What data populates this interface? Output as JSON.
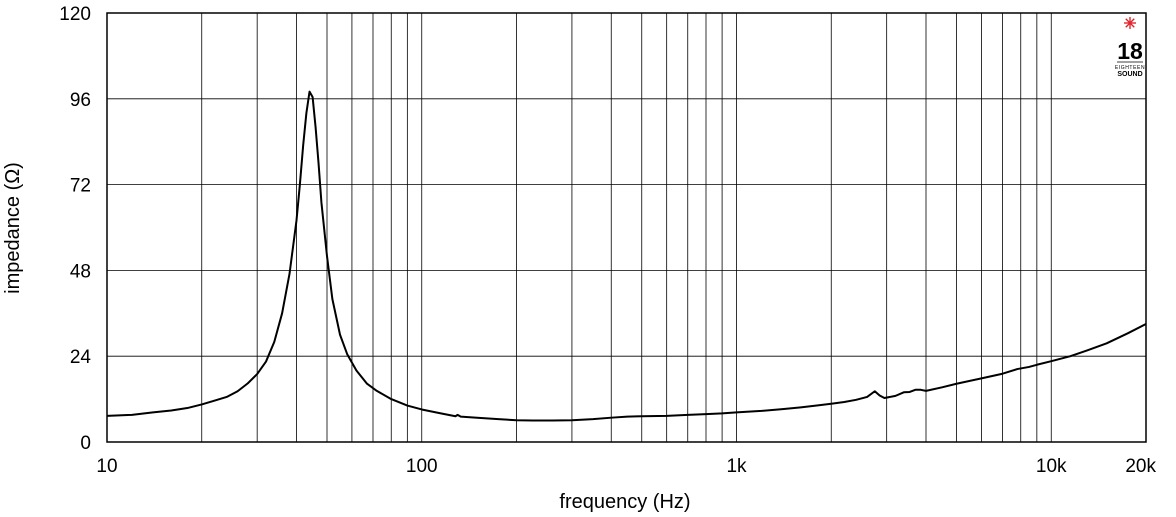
{
  "chart_data": {
    "type": "line",
    "xscale": "log",
    "xlim": [
      10,
      20000
    ],
    "ylim": [
      0,
      120
    ],
    "xlabel": "frequency (Hz)",
    "ylabel": "impedance (Ω)",
    "grid": true,
    "x_tick_labels": [
      {
        "value": 10,
        "label": "10"
      },
      {
        "value": 100,
        "label": "100"
      },
      {
        "value": 1000,
        "label": "1k"
      },
      {
        "value": 10000,
        "label": "10k"
      },
      {
        "value": 20000,
        "label": "20k"
      }
    ],
    "y_tick_labels": [
      {
        "value": 0,
        "label": "0"
      },
      {
        "value": 24,
        "label": "24"
      },
      {
        "value": 48,
        "label": "48"
      },
      {
        "value": 72,
        "label": "72"
      },
      {
        "value": 96,
        "label": "96"
      },
      {
        "value": 120,
        "label": "120"
      }
    ],
    "x_minor_gridlines": [
      20,
      30,
      40,
      50,
      60,
      70,
      80,
      90,
      200,
      300,
      400,
      500,
      600,
      700,
      800,
      900,
      2000,
      3000,
      4000,
      5000,
      6000,
      7000,
      8000,
      9000
    ],
    "series": [
      {
        "color": "#000000",
        "points": [
          [
            10,
            7.3
          ],
          [
            12,
            7.6
          ],
          [
            14,
            8.3
          ],
          [
            16,
            8.8
          ],
          [
            18,
            9.5
          ],
          [
            20,
            10.5
          ],
          [
            22,
            11.6
          ],
          [
            24,
            12.6
          ],
          [
            26,
            14.2
          ],
          [
            28,
            16.4
          ],
          [
            30,
            19.0
          ],
          [
            32,
            22.5
          ],
          [
            34,
            28.0
          ],
          [
            36,
            36.0
          ],
          [
            38,
            47.0
          ],
          [
            40,
            62.0
          ],
          [
            41,
            72.0
          ],
          [
            42,
            83.0
          ],
          [
            43,
            92.0
          ],
          [
            44,
            98.0
          ],
          [
            45,
            96.5
          ],
          [
            46,
            88.0
          ],
          [
            47,
            78.0
          ],
          [
            48,
            67.0
          ],
          [
            50,
            52.0
          ],
          [
            52,
            40.0
          ],
          [
            55,
            30.0
          ],
          [
            58,
            24.5
          ],
          [
            62,
            20.0
          ],
          [
            67,
            16.3
          ],
          [
            72,
            14.3
          ],
          [
            80,
            12.0
          ],
          [
            90,
            10.2
          ],
          [
            100,
            9.1
          ],
          [
            115,
            8.0
          ],
          [
            128,
            7.2
          ],
          [
            130,
            7.6
          ],
          [
            133,
            7.1
          ],
          [
            150,
            6.8
          ],
          [
            175,
            6.4
          ],
          [
            200,
            6.1
          ],
          [
            225,
            6.0
          ],
          [
            260,
            6.0
          ],
          [
            300,
            6.1
          ],
          [
            350,
            6.4
          ],
          [
            400,
            6.8
          ],
          [
            450,
            7.1
          ],
          [
            500,
            7.2
          ],
          [
            600,
            7.3
          ],
          [
            700,
            7.6
          ],
          [
            800,
            7.8
          ],
          [
            900,
            8.0
          ],
          [
            1000,
            8.3
          ],
          [
            1200,
            8.7
          ],
          [
            1400,
            9.2
          ],
          [
            1600,
            9.7
          ],
          [
            1800,
            10.2
          ],
          [
            2000,
            10.7
          ],
          [
            2200,
            11.2
          ],
          [
            2400,
            11.8
          ],
          [
            2600,
            12.6
          ],
          [
            2750,
            14.2
          ],
          [
            2850,
            13.0
          ],
          [
            2950,
            12.3
          ],
          [
            3200,
            12.9
          ],
          [
            3400,
            13.9
          ],
          [
            3550,
            14.0
          ],
          [
            3700,
            14.6
          ],
          [
            3850,
            14.6
          ],
          [
            4000,
            14.3
          ],
          [
            4500,
            15.3
          ],
          [
            5000,
            16.3
          ],
          [
            6000,
            17.8
          ],
          [
            7000,
            19.1
          ],
          [
            7800,
            20.4
          ],
          [
            8500,
            21.0
          ],
          [
            9000,
            21.6
          ],
          [
            10000,
            22.6
          ],
          [
            11500,
            24.0
          ],
          [
            13000,
            25.6
          ],
          [
            15000,
            27.6
          ],
          [
            17500,
            30.4
          ],
          [
            20000,
            33.0
          ]
        ]
      }
    ]
  },
  "logo": {
    "number": "18",
    "line1": "EIGHTEEN",
    "line2": "SOUND",
    "accent": "#e0242b"
  }
}
